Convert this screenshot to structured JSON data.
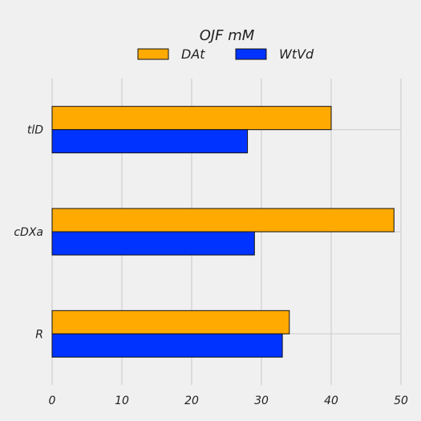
{
  "chart_data": {
    "type": "bar",
    "orientation": "horizontal",
    "title": "",
    "xlabel": "",
    "ylabel": "",
    "legend_title": "OJF mM",
    "legend_position": "top-center",
    "categories": [
      "R",
      "cDXa",
      "tlD"
    ],
    "series": [
      {
        "name": "DAt",
        "color": "#ffaa00",
        "values": [
          34,
          49,
          40
        ]
      },
      {
        "name": "WtVd",
        "color": "#0033ff",
        "values": [
          33,
          29,
          28
        ]
      }
    ],
    "xlim": [
      0,
      50
    ],
    "xticks": [
      0,
      10,
      20,
      30,
      40,
      50
    ],
    "xtick_labels": [
      "0",
      "10",
      "20",
      "30",
      "40",
      "50"
    ],
    "grid": true
  }
}
